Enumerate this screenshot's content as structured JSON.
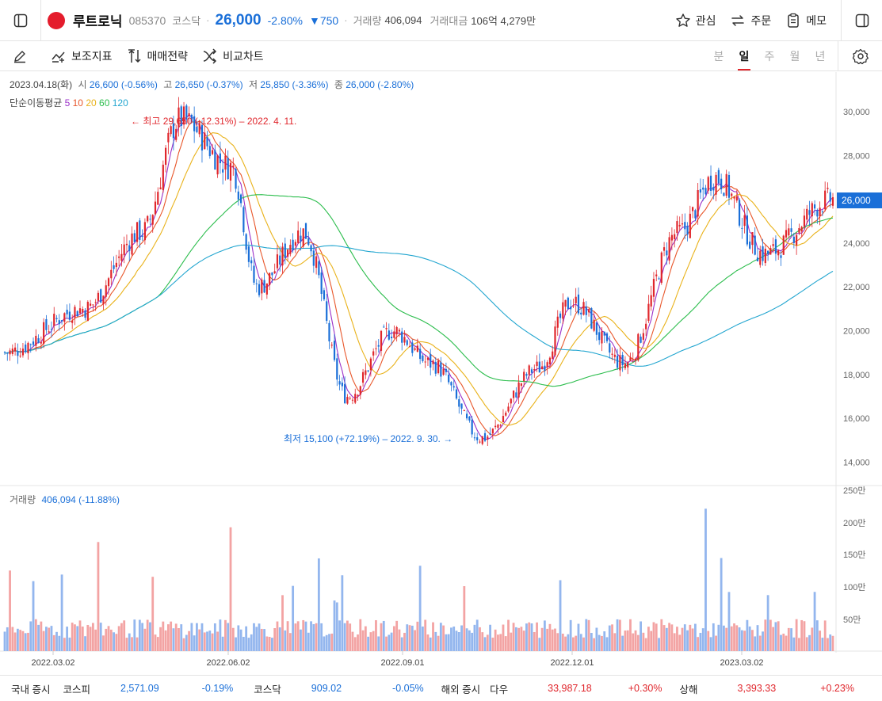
{
  "header": {
    "name": "루트로닉",
    "code": "085370",
    "market": "코스닥",
    "price": "26,000",
    "change_pct": "-2.80%",
    "change_amt": "▼750",
    "volume_label": "거래량",
    "volume": "406,094",
    "value_label": "거래대금",
    "value": "106억 4,279만",
    "actions": [
      "관심",
      "주문",
      "메모"
    ]
  },
  "toolbar": {
    "tools": [
      "보조지표",
      "매매전략",
      "비교차트"
    ],
    "periods": [
      "분",
      "일",
      "주",
      "월",
      "년"
    ],
    "active_period": "일"
  },
  "ohlc": {
    "date": "2023.04.18(화)",
    "open_label": "시",
    "open": "26,600 (-0.56%)",
    "high_label": "고",
    "high": "26,650 (-0.37%)",
    "low_label": "저",
    "low": "25,850 (-3.36%)",
    "close_label": "종",
    "close": "26,000 (-2.80%)"
  },
  "ma": {
    "label": "단순이동평균",
    "periods": [
      {
        "n": "5",
        "color": "#9b30c8"
      },
      {
        "n": "10",
        "color": "#e8562a"
      },
      {
        "n": "20",
        "color": "#e9b21a"
      },
      {
        "n": "60",
        "color": "#2bbd4c"
      },
      {
        "n": "120",
        "color": "#23a6d0"
      }
    ]
  },
  "annotations": {
    "high": "← 최고 29,650 (-12.31%) – 2022. 4. 11.",
    "low": "최저 15,100 (+72.19%) – 2022. 9. 30. →"
  },
  "volume_info": {
    "label": "거래량",
    "value": "406,094 (-11.88%)"
  },
  "current_price_tag": "26,000",
  "bottom": {
    "domestic_label": "국내 증시",
    "kospi_label": "코스피",
    "kospi": "2,571.09",
    "kospi_chg": "-0.19%",
    "kosdaq_label": "코스닥",
    "kosdaq": "909.02",
    "kosdaq_chg": "-0.05%",
    "overseas_label": "해외 증시",
    "dow_label": "다우",
    "dow": "33,987.18",
    "dow_chg": "+0.30%",
    "sh_label": "상해",
    "sh": "3,393.33",
    "sh_chg": "+0.23%"
  },
  "chart_data": {
    "type": "candlestick",
    "price_axis": [
      30000,
      28000,
      26000,
      24000,
      22000,
      20000,
      18000,
      16000,
      14000
    ],
    "price_axis_labels": [
      "30,000",
      "28,000",
      "26,000",
      "24,000",
      "22,000",
      "20,000",
      "18,000",
      "16,000",
      "14,000"
    ],
    "volume_axis": [
      "250만",
      "200만",
      "150만",
      "100만",
      "50만"
    ],
    "x_labels": [
      "2022.03.02",
      "2022.06.02",
      "2022.09.01",
      "2022.12.01",
      "2023.03.02"
    ],
    "key_points": [
      {
        "date": "2022-01-01",
        "price": 19000
      },
      {
        "date": "2022-02-15",
        "price": 21000
      },
      {
        "date": "2022-03-20",
        "price": 24500
      },
      {
        "date": "2022-04-11",
        "price": 29650
      },
      {
        "date": "2022-05-10",
        "price": 27500
      },
      {
        "date": "2022-05-25",
        "price": 22000
      },
      {
        "date": "2022-06-20",
        "price": 24500
      },
      {
        "date": "2022-07-15",
        "price": 17000
      },
      {
        "date": "2022-08-10",
        "price": 20000
      },
      {
        "date": "2022-09-01",
        "price": 18500
      },
      {
        "date": "2022-09-30",
        "price": 15100
      },
      {
        "date": "2022-11-01",
        "price": 18300
      },
      {
        "date": "2022-11-20",
        "price": 21300
      },
      {
        "date": "2022-12-20",
        "price": 18500
      },
      {
        "date": "2023-01-20",
        "price": 24500
      },
      {
        "date": "2023-02-10",
        "price": 27000
      },
      {
        "date": "2023-03-10",
        "price": 23500
      },
      {
        "date": "2023-04-18",
        "price": 26000
      }
    ]
  }
}
